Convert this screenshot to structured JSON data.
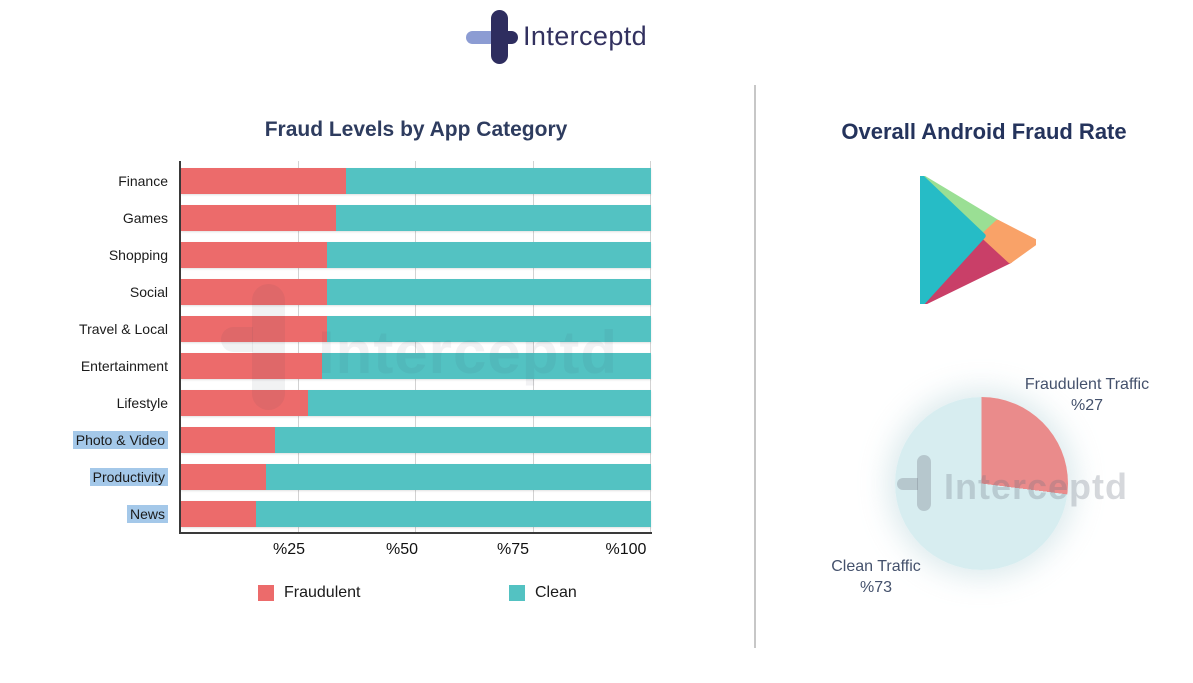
{
  "logo": {
    "text": "Interceptd"
  },
  "watermark": {
    "text": "Interceptd"
  },
  "chart_data": [
    {
      "type": "bar",
      "orientation": "horizontal_stacked",
      "title": "Fraud Levels by App Category",
      "categories": [
        "Finance",
        "Games",
        "Shopping",
        "Social",
        "Travel & Local",
        "Entertainment",
        "Lifestyle",
        "Photo & Video",
        "Productivity",
        "News"
      ],
      "highlighted_categories": [
        "Photo & Video",
        "Productivity",
        "News"
      ],
      "highlight_color": "#A4C8E9",
      "series": [
        {
          "name": "Fraudulent",
          "color": "#EC6B6B",
          "values": [
            35,
            33,
            31,
            31,
            31,
            30,
            27,
            20,
            18,
            16
          ]
        },
        {
          "name": "Clean",
          "color": "#53C2C2",
          "values": [
            65,
            67,
            69,
            69,
            69,
            70,
            73,
            80,
            82,
            84
          ]
        }
      ],
      "x_ticks": [
        "%25",
        "%50",
        "%75",
        "%100"
      ],
      "xlim": [
        0,
        100
      ],
      "grid": "vertical",
      "legend_position": "bottom"
    },
    {
      "type": "pie",
      "title": "Overall Android Fraud Rate",
      "icon": "google-play-icon",
      "start_angle": "top",
      "direction": "clockwise",
      "slices": [
        {
          "label": "Fraudulent Traffic",
          "value": 27,
          "value_label": "%27",
          "color": "#EA8B8B"
        },
        {
          "label": "Clean Traffic",
          "value": 73,
          "value_label": "%73",
          "color": "#D7EDF0"
        }
      ]
    }
  ]
}
